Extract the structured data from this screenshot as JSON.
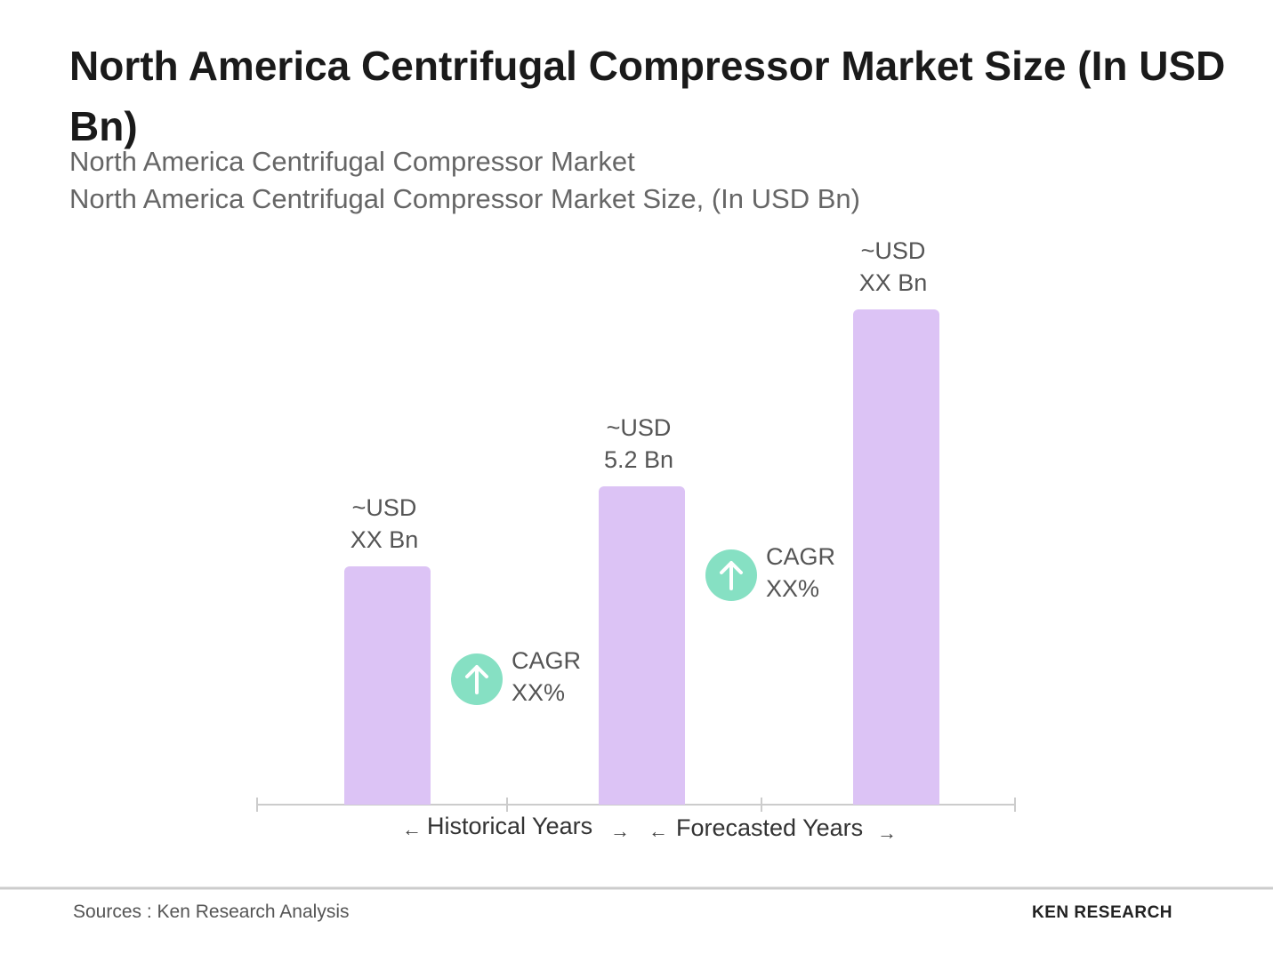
{
  "chart_data": {
    "type": "bar",
    "title": "North America Centrifugal Compressor Market Size (In USD Bn)",
    "subtitle": [
      "North America Centrifugal Compressor Market",
      "North America Centrifugal Compressor Market Size, (In USD Bn)"
    ],
    "values": [
      3.9,
      5.2,
      8.1
    ],
    "value_labels": [
      "~USD\nXX Bn",
      "~USD\n5.2 Bn",
      "~USD\nXX Bn"
    ],
    "color": "#dcc3f5",
    "annotations": [
      "CAGR\nXX%",
      "CAGR\nXX%"
    ],
    "period_labels": [
      "Historical Years",
      "Forecasted Years"
    ],
    "source": "Sources : Ken Research Analysis",
    "logo": "KEN RESEARCH"
  }
}
